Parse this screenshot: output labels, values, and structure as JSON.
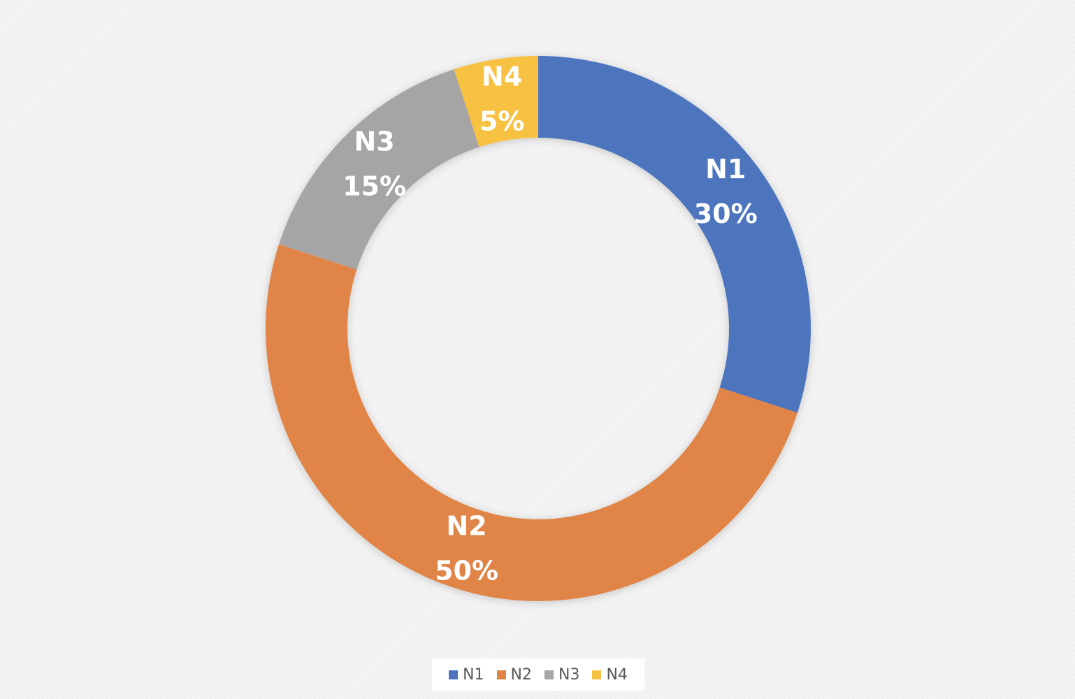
{
  "chart_data": {
    "type": "pie",
    "donut": true,
    "title": "",
    "categories": [
      "N1",
      "N2",
      "N3",
      "N4"
    ],
    "values": [
      30,
      50,
      15,
      5
    ],
    "value_labels": [
      "30%",
      "50%",
      "15%",
      "5%"
    ],
    "colors": [
      "#4e74be",
      "#e08446",
      "#a5a5a5",
      "#f7c143"
    ],
    "start_angle_deg": 0,
    "direction": "clockwise",
    "data_labels": "category and percentage, inside slices",
    "legend": {
      "position": "bottom",
      "items": [
        {
          "label": "N1",
          "color": "#4e74be"
        },
        {
          "label": "N2",
          "color": "#e08446"
        },
        {
          "label": "N3",
          "color": "#a5a5a5"
        },
        {
          "label": "N4",
          "color": "#f7c143"
        }
      ]
    }
  }
}
